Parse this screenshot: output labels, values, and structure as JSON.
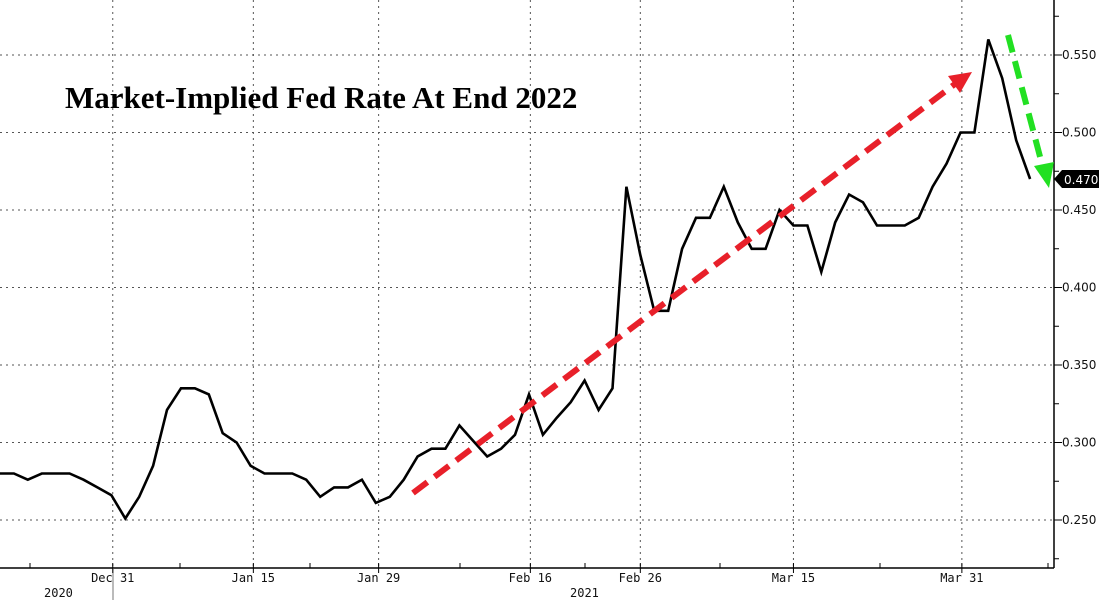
{
  "chart_data": {
    "type": "line",
    "title": "Market-Implied Fed Rate At End 2022",
    "xlabel": "",
    "ylabel": "",
    "ylim": [
      0.219,
      0.585
    ],
    "grid": true,
    "y_ticks": [
      "0.250",
      "0.300",
      "0.350",
      "0.400",
      "0.450",
      "0.500",
      "0.550"
    ],
    "y_tick_values": [
      0.25,
      0.3,
      0.35,
      0.4,
      0.45,
      0.5,
      0.55
    ],
    "x_ticks": [
      {
        "label": "Dec 31",
        "x": 8.1
      },
      {
        "label": "Jan 15",
        "x": 18.2
      },
      {
        "label": "Jan 29",
        "x": 27.2
      },
      {
        "label": "Feb 16",
        "x": 38.1
      },
      {
        "label": "Feb 26",
        "x": 46.0
      },
      {
        "label": "Mar 15",
        "x": 57.0
      },
      {
        "label": "Mar 31",
        "x": 69.1
      }
    ],
    "year_labels": [
      "2020",
      "2021"
    ],
    "last_value_label": "0.470",
    "last_value": 0.47,
    "series": [
      {
        "name": "Market-Implied Fed Rate At End 2022",
        "color": "#000000",
        "values": [
          0.28,
          0.28,
          0.276,
          0.28,
          0.28,
          0.28,
          0.276,
          0.271,
          0.266,
          0.251,
          0.265,
          0.285,
          0.321,
          0.335,
          0.335,
          0.331,
          0.306,
          0.3,
          0.285,
          0.28,
          0.28,
          0.28,
          0.276,
          0.265,
          0.271,
          0.271,
          0.276,
          0.261,
          0.265,
          0.276,
          0.291,
          0.296,
          0.296,
          0.311,
          0.301,
          0.291,
          0.296,
          0.305,
          0.331,
          0.305,
          0.316,
          0.326,
          0.34,
          0.321,
          0.335,
          0.465,
          0.421,
          0.385,
          0.385,
          0.425,
          0.445,
          0.445,
          0.465,
          0.442,
          0.425,
          0.425,
          0.45,
          0.44,
          0.44,
          0.41,
          0.442,
          0.46,
          0.455,
          0.44,
          0.44,
          0.44,
          0.445,
          0.465,
          0.48,
          0.5,
          0.5,
          0.56,
          0.535,
          0.495,
          0.47
        ]
      }
    ],
    "annotations": [
      {
        "type": "arrow",
        "color": "#e8202a",
        "direction": "up-right",
        "meaning": "uptrend"
      },
      {
        "type": "arrow",
        "color": "#22e022",
        "direction": "down",
        "meaning": "reversal"
      }
    ]
  }
}
